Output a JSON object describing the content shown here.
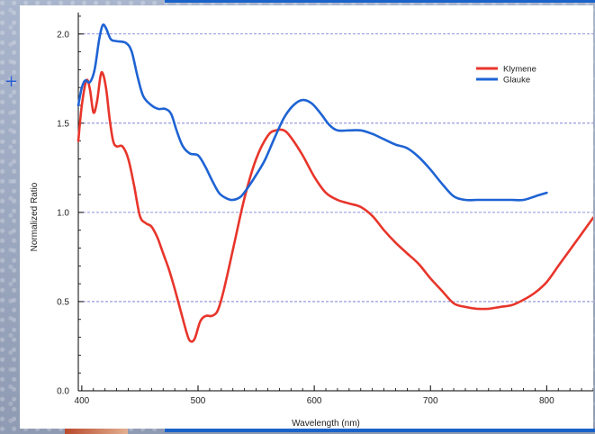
{
  "chart_data": {
    "type": "line",
    "title": "",
    "xlabel": "Wavelength (nm)",
    "ylabel": "Normalized Ratio",
    "xlim": [
      397,
      840
    ],
    "ylim": [
      0,
      2.12
    ],
    "x_ticks": [
      400,
      500,
      600,
      700,
      800
    ],
    "y_ticks": [
      0.0,
      0.5,
      1.0,
      1.5,
      2.0
    ],
    "x_tick_labels": [
      "400",
      "500",
      "600",
      "700",
      "800"
    ],
    "y_tick_labels": [
      "0.0",
      "0.5",
      "1.0",
      "1.5",
      "2.0"
    ],
    "grid": "horizontal dashed",
    "legend_position": "top-right",
    "series": [
      {
        "name": "Klymene",
        "color": "#e8352b",
        "points": [
          [
            397,
            1.4
          ],
          [
            400,
            1.6
          ],
          [
            404,
            1.74
          ],
          [
            407,
            1.69
          ],
          [
            410,
            1.56
          ],
          [
            413,
            1.62
          ],
          [
            416,
            1.76
          ],
          [
            418,
            1.78
          ],
          [
            421,
            1.69
          ],
          [
            424,
            1.52
          ],
          [
            427,
            1.4
          ],
          [
            430,
            1.37
          ],
          [
            435,
            1.37
          ],
          [
            440,
            1.3
          ],
          [
            445,
            1.15
          ],
          [
            450,
            0.98
          ],
          [
            455,
            0.94
          ],
          [
            460,
            0.92
          ],
          [
            465,
            0.86
          ],
          [
            470,
            0.77
          ],
          [
            475,
            0.68
          ],
          [
            480,
            0.57
          ],
          [
            485,
            0.45
          ],
          [
            490,
            0.33
          ],
          [
            493,
            0.28
          ],
          [
            497,
            0.29
          ],
          [
            502,
            0.39
          ],
          [
            507,
            0.42
          ],
          [
            512,
            0.42
          ],
          [
            517,
            0.45
          ],
          [
            522,
            0.56
          ],
          [
            530,
            0.79
          ],
          [
            540,
            1.08
          ],
          [
            550,
            1.3
          ],
          [
            560,
            1.43
          ],
          [
            567,
            1.46
          ],
          [
            574,
            1.46
          ],
          [
            580,
            1.42
          ],
          [
            590,
            1.32
          ],
          [
            600,
            1.2
          ],
          [
            610,
            1.11
          ],
          [
            620,
            1.07
          ],
          [
            630,
            1.05
          ],
          [
            640,
            1.03
          ],
          [
            650,
            0.98
          ],
          [
            660,
            0.9
          ],
          [
            670,
            0.83
          ],
          [
            680,
            0.77
          ],
          [
            690,
            0.71
          ],
          [
            700,
            0.63
          ],
          [
            710,
            0.56
          ],
          [
            720,
            0.49
          ],
          [
            730,
            0.47
          ],
          [
            740,
            0.46
          ],
          [
            750,
            0.46
          ],
          [
            760,
            0.47
          ],
          [
            770,
            0.48
          ],
          [
            780,
            0.51
          ],
          [
            790,
            0.55
          ],
          [
            800,
            0.61
          ],
          [
            810,
            0.7
          ],
          [
            820,
            0.79
          ],
          [
            830,
            0.88
          ],
          [
            840,
            0.97
          ]
        ]
      },
      {
        "name": "Glauke",
        "color": "#1e63d4",
        "points": [
          [
            397,
            1.6
          ],
          [
            400,
            1.7
          ],
          [
            403,
            1.74
          ],
          [
            407,
            1.73
          ],
          [
            411,
            1.8
          ],
          [
            415,
            1.97
          ],
          [
            418,
            2.05
          ],
          [
            421,
            2.03
          ],
          [
            425,
            1.97
          ],
          [
            430,
            1.96
          ],
          [
            438,
            1.95
          ],
          [
            443,
            1.9
          ],
          [
            448,
            1.76
          ],
          [
            453,
            1.65
          ],
          [
            460,
            1.6
          ],
          [
            466,
            1.58
          ],
          [
            472,
            1.58
          ],
          [
            477,
            1.55
          ],
          [
            482,
            1.45
          ],
          [
            487,
            1.37
          ],
          [
            493,
            1.33
          ],
          [
            500,
            1.32
          ],
          [
            506,
            1.26
          ],
          [
            512,
            1.18
          ],
          [
            518,
            1.11
          ],
          [
            524,
            1.08
          ],
          [
            530,
            1.07
          ],
          [
            537,
            1.09
          ],
          [
            544,
            1.15
          ],
          [
            551,
            1.22
          ],
          [
            558,
            1.3
          ],
          [
            566,
            1.42
          ],
          [
            574,
            1.53
          ],
          [
            582,
            1.6
          ],
          [
            590,
            1.63
          ],
          [
            598,
            1.61
          ],
          [
            606,
            1.55
          ],
          [
            613,
            1.49
          ],
          [
            620,
            1.46
          ],
          [
            630,
            1.46
          ],
          [
            640,
            1.46
          ],
          [
            650,
            1.44
          ],
          [
            660,
            1.41
          ],
          [
            670,
            1.38
          ],
          [
            680,
            1.36
          ],
          [
            690,
            1.31
          ],
          [
            700,
            1.24
          ],
          [
            710,
            1.16
          ],
          [
            720,
            1.09
          ],
          [
            730,
            1.07
          ],
          [
            740,
            1.07
          ],
          [
            750,
            1.07
          ],
          [
            760,
            1.07
          ],
          [
            770,
            1.07
          ],
          [
            780,
            1.07
          ],
          [
            790,
            1.09
          ],
          [
            800,
            1.11
          ]
        ]
      }
    ]
  }
}
